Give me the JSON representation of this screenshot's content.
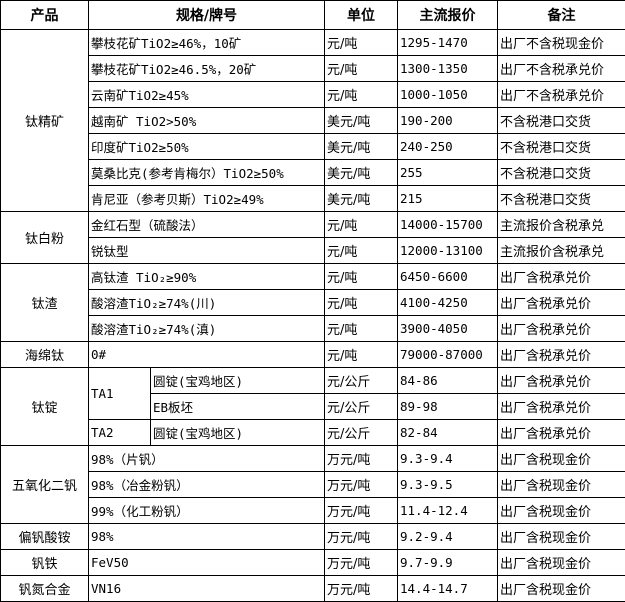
{
  "headers": [
    "产品",
    "规格/牌号",
    "单位",
    "主流报价",
    "备注"
  ],
  "groups": [
    {
      "product": "钛精矿",
      "rows": [
        {
          "spec": "攀枝花矿TiO2≥46%，10矿",
          "unit": "元/吨",
          "price": "1295-1470",
          "note": "出厂不含税现金价"
        },
        {
          "spec": "攀枝花矿TiO2≥46.5%，20矿",
          "unit": "元/吨",
          "price": "1300-1350",
          "note": "出厂不含税承兑价"
        },
        {
          "spec": "云南矿TiO2≥45%",
          "unit": "元/吨",
          "price": "1000-1050",
          "note": "出厂不含税承兑价"
        },
        {
          "spec": "越南矿 TiO2>50%",
          "unit": "美元/吨",
          "price": "190-200",
          "note": "不含税港口交货"
        },
        {
          "spec": "印度矿TiO2≥50%",
          "unit": "美元/吨",
          "price": "240-250",
          "note": "不含税港口交货"
        },
        {
          "spec": "莫桑比克(参考肯梅尔）TiO2≥50%",
          "unit": "美元/吨",
          "price": "255",
          "note": "不含税港口交货"
        },
        {
          "spec": "肯尼亚（参考贝斯）TiO2≥49%",
          "unit": "美元/吨",
          "price": "215",
          "note": "不含税港口交货"
        }
      ]
    },
    {
      "product": "钛白粉",
      "rows": [
        {
          "spec": "金红石型（硫酸法）",
          "unit": "元/吨",
          "price": "14000-15700",
          "note": "主流报价含税承兑"
        },
        {
          "spec": "锐钛型",
          "unit": "元/吨",
          "price": "12000-13100",
          "note": "主流报价含税承兑"
        }
      ]
    },
    {
      "product": "钛渣",
      "rows": [
        {
          "spec": "高钛渣 TiO₂≥90%",
          "unit": "元/吨",
          "price": "6450-6600",
          "note": "出厂含税承兑价"
        },
        {
          "spec": "酸溶渣TiO₂≥74%(川)",
          "unit": "元/吨",
          "price": "4100-4250",
          "note": "出厂含税承兑价"
        },
        {
          "spec": "酸溶渣TiO₂≥74%(滇)",
          "unit": "元/吨",
          "price": "3900-4050",
          "note": "出厂含税承兑价"
        }
      ]
    },
    {
      "product": "海绵钛",
      "rows": [
        {
          "spec": "0#",
          "unit": "元/吨",
          "price": "79000-87000",
          "note": "出厂含税承兑价"
        }
      ]
    },
    {
      "product": "钛锭",
      "rows": [
        {
          "grade": "TA1",
          "grade_span": 2,
          "spec": "圆锭(宝鸡地区)",
          "unit": "元/公斤",
          "price": "84-86",
          "note": "出厂含税承兑价"
        },
        {
          "spec": "EB板坯",
          "unit": "元/公斤",
          "price": "89-98",
          "note": "出厂含税承兑价"
        },
        {
          "grade": "TA2",
          "grade_span": 1,
          "spec": "圆锭(宝鸡地区)",
          "unit": "元/公斤",
          "price": "82-84",
          "note": "出厂含税承兑价"
        }
      ]
    },
    {
      "product": "五氧化二钒",
      "rows": [
        {
          "spec": "98%（片钒）",
          "unit": "万元/吨",
          "price": "9.3-9.4",
          "note": "出厂含税现金价"
        },
        {
          "spec": "98%（冶金粉钒）",
          "unit": "万元/吨",
          "price": "9.3-9.5",
          "note": "出厂含税现金价"
        },
        {
          "spec": "99%（化工粉钒）",
          "unit": "万元/吨",
          "price": "11.4-12.4",
          "note": "出厂含税现金价"
        }
      ]
    },
    {
      "product": "偏钒酸铵",
      "rows": [
        {
          "spec": "98%",
          "unit": "万元/吨",
          "price": "9.2-9.4",
          "note": "出厂含税现金价"
        }
      ]
    },
    {
      "product": "钒铁",
      "rows": [
        {
          "spec": "FeV50",
          "unit": "万元/吨",
          "price": "9.7-9.9",
          "note": "出厂含税现金价"
        }
      ]
    },
    {
      "product": "钒氮合金",
      "rows": [
        {
          "spec": "VN16",
          "unit": "万元/吨",
          "price": "14.4-14.7",
          "note": "出厂含税现金价"
        }
      ]
    }
  ]
}
